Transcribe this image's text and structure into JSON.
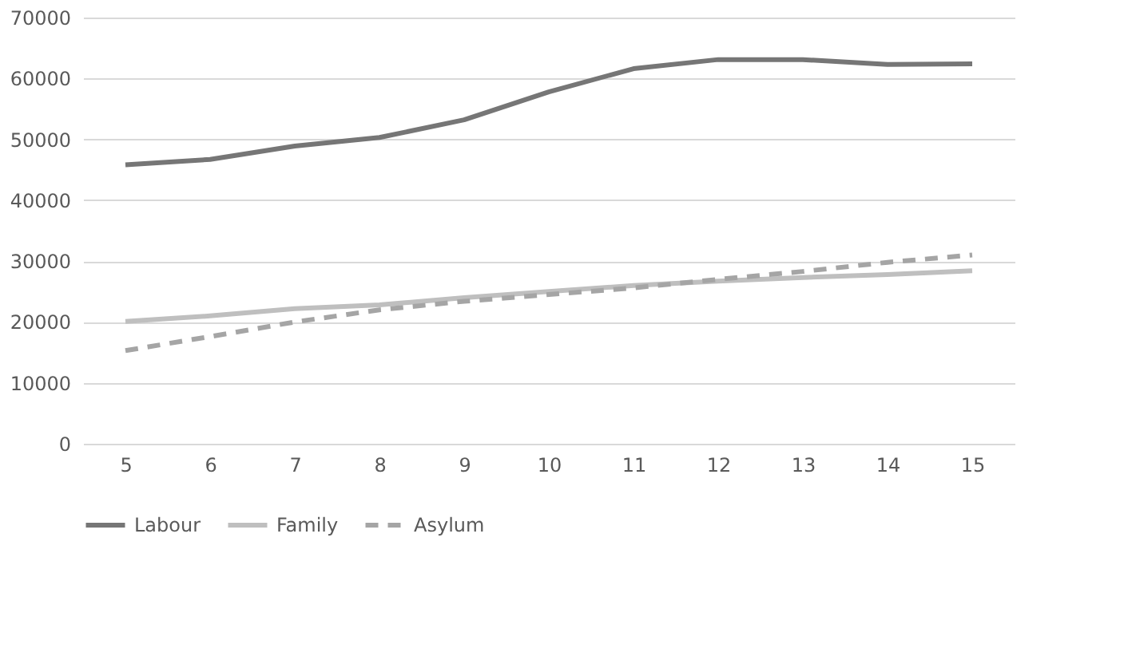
{
  "chart_data": {
    "type": "line",
    "categories": [
      "5",
      "6",
      "7",
      "8",
      "9",
      "10",
      "11",
      "12",
      "13",
      "14",
      "15"
    ],
    "series": [
      {
        "name": "Labour",
        "color": "#767676",
        "line_style": "solid",
        "values": [
          45800,
          46700,
          48900,
          50300,
          53200,
          57800,
          61600,
          63100,
          63100,
          62300,
          62400
        ]
      },
      {
        "name": "Family",
        "color": "#bfbfbf",
        "line_style": "solid",
        "values": [
          20100,
          21000,
          22200,
          22800,
          24000,
          25000,
          26000,
          26700,
          27300,
          27800,
          28400
        ]
      },
      {
        "name": "Asylum",
        "color": "#a5a5a5",
        "line_style": "dashed",
        "values": [
          15300,
          17600,
          20000,
          22000,
          23400,
          24500,
          25600,
          27000,
          28300,
          29800,
          31000
        ]
      }
    ],
    "ylim": [
      0,
      70000
    ],
    "yticks": [
      0,
      10000,
      20000,
      30000,
      40000,
      50000,
      60000,
      70000
    ],
    "grid": "y",
    "legend": "bottom",
    "marker": "none"
  }
}
